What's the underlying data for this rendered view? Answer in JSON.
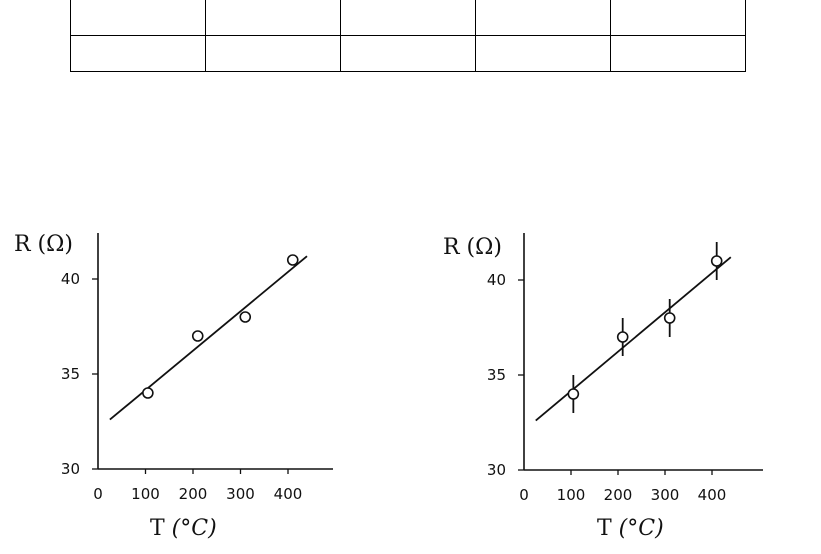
{
  "table": {
    "rows": [
      [
        "",
        "",
        "",
        "",
        ""
      ],
      [
        "",
        "",
        "",
        "",
        ""
      ]
    ]
  },
  "chart_data": [
    {
      "type": "scatter",
      "error_bars": false,
      "x": [
        105,
        210,
        310,
        410
      ],
      "y": [
        34.0,
        37.0,
        38.0,
        41.0
      ],
      "fit_line": {
        "x": [
          25,
          440
        ],
        "y": [
          32.6,
          41.2
        ]
      },
      "xlabel": "T",
      "xunit": "(°C)",
      "ylabel": "R",
      "yunit": "(Ω)",
      "x_ticks": [
        "0",
        "100",
        "200",
        "300",
        "400"
      ],
      "y_ticks": [
        "30",
        "35",
        "40"
      ],
      "xlim": [
        0,
        500
      ],
      "ylim": [
        30,
        42.5
      ],
      "grid": false
    },
    {
      "type": "scatter",
      "error_bars": true,
      "x": [
        105,
        210,
        310,
        410
      ],
      "y": [
        34.0,
        37.0,
        38.0,
        41.0
      ],
      "yerr": [
        1.0,
        1.0,
        1.0,
        1.0
      ],
      "fit_line": {
        "x": [
          25,
          440
        ],
        "y": [
          32.6,
          41.2
        ]
      },
      "xlabel": "T",
      "xunit": "(°C)",
      "ylabel": "R",
      "yunit": "(Ω)",
      "x_ticks": [
        "0",
        "100",
        "200",
        "300",
        "400"
      ],
      "y_ticks": [
        "30",
        "35",
        "40"
      ],
      "xlim": [
        0,
        500
      ],
      "ylim": [
        30,
        42.5
      ],
      "grid": false
    }
  ]
}
